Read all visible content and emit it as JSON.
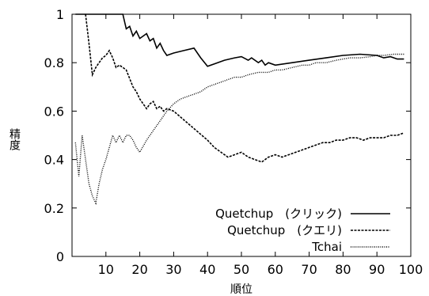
{
  "chart_data": {
    "type": "line",
    "title": "",
    "xlabel": "順位",
    "ylabel": "精度",
    "xlim": [
      0,
      100
    ],
    "ylim": [
      0,
      1
    ],
    "xticks": [
      "10",
      "20",
      "30",
      "40",
      "50",
      "60",
      "70",
      "80",
      "90",
      "100"
    ],
    "yticks": [
      "0",
      "0.2",
      "0.4",
      "0.6",
      "0.8",
      "1"
    ],
    "grid": false,
    "legend_position": "bottom-right",
    "series": [
      {
        "name": "Quetchup　(クリック)",
        "style": "solid",
        "x": [
          1,
          5,
          10,
          14,
          15,
          16,
          17,
          18,
          19,
          20,
          22,
          23,
          24,
          25,
          26,
          27,
          28,
          30,
          33,
          36,
          38,
          40,
          42,
          45,
          48,
          50,
          52,
          53,
          55,
          56,
          57,
          58,
          60,
          65,
          70,
          75,
          80,
          85,
          90,
          92,
          94,
          96,
          98
        ],
        "y": [
          1.0,
          1.0,
          1.0,
          1.0,
          1.0,
          0.94,
          0.95,
          0.91,
          0.93,
          0.9,
          0.92,
          0.89,
          0.9,
          0.86,
          0.88,
          0.85,
          0.83,
          0.84,
          0.85,
          0.86,
          0.82,
          0.785,
          0.795,
          0.81,
          0.82,
          0.825,
          0.81,
          0.82,
          0.8,
          0.81,
          0.79,
          0.8,
          0.79,
          0.8,
          0.81,
          0.82,
          0.83,
          0.835,
          0.83,
          0.82,
          0.825,
          0.815,
          0.815
        ]
      },
      {
        "name": "Quetchup　(クエリ)",
        "style": "dashed",
        "x": [
          4,
          5,
          6,
          7,
          8,
          9,
          10,
          11,
          12,
          13,
          14,
          15,
          16,
          18,
          19,
          20,
          22,
          23,
          24,
          25,
          26,
          27,
          28,
          30,
          35,
          40,
          42,
          44,
          46,
          48,
          50,
          52,
          54,
          56,
          58,
          60,
          62,
          64,
          66,
          68,
          70,
          72,
          74,
          76,
          78,
          80,
          82,
          84,
          86,
          88,
          90,
          92,
          94,
          96,
          98
        ],
        "y": [
          1.0,
          0.88,
          0.75,
          0.78,
          0.8,
          0.82,
          0.83,
          0.85,
          0.82,
          0.78,
          0.79,
          0.78,
          0.77,
          0.7,
          0.68,
          0.65,
          0.61,
          0.63,
          0.64,
          0.61,
          0.62,
          0.6,
          0.61,
          0.6,
          0.54,
          0.48,
          0.45,
          0.43,
          0.41,
          0.42,
          0.43,
          0.41,
          0.4,
          0.39,
          0.41,
          0.42,
          0.41,
          0.42,
          0.43,
          0.44,
          0.45,
          0.46,
          0.47,
          0.47,
          0.48,
          0.48,
          0.49,
          0.49,
          0.48,
          0.49,
          0.49,
          0.49,
          0.5,
          0.5,
          0.51
        ]
      },
      {
        "name": "Tchai",
        "style": "dotted",
        "x": [
          1,
          2,
          3,
          4,
          5,
          6,
          7,
          8,
          9,
          10,
          11,
          12,
          13,
          14,
          15,
          16,
          17,
          18,
          19,
          20,
          22,
          24,
          26,
          28,
          30,
          32,
          34,
          36,
          38,
          40,
          42,
          44,
          46,
          48,
          50,
          52,
          55,
          58,
          60,
          62,
          65,
          68,
          70,
          72,
          75,
          78,
          80,
          82,
          85,
          88,
          90,
          92,
          95,
          98
        ],
        "y": [
          0.47,
          0.33,
          0.5,
          0.4,
          0.3,
          0.25,
          0.22,
          0.3,
          0.36,
          0.4,
          0.45,
          0.5,
          0.47,
          0.5,
          0.47,
          0.5,
          0.5,
          0.48,
          0.45,
          0.43,
          0.48,
          0.52,
          0.56,
          0.6,
          0.63,
          0.65,
          0.66,
          0.67,
          0.68,
          0.7,
          0.71,
          0.72,
          0.73,
          0.74,
          0.74,
          0.75,
          0.76,
          0.76,
          0.77,
          0.77,
          0.78,
          0.79,
          0.79,
          0.8,
          0.8,
          0.81,
          0.815,
          0.82,
          0.82,
          0.825,
          0.83,
          0.83,
          0.835,
          0.835
        ]
      }
    ]
  }
}
